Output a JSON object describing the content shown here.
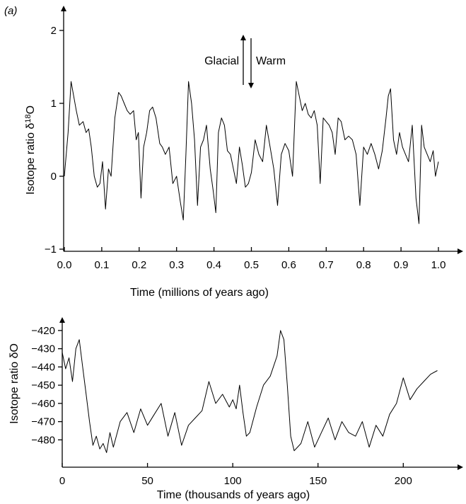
{
  "chart_data": [
    {
      "type": "line",
      "panel_label": "(a)",
      "xlabel": "Time (millions of years ago)",
      "ylabel": "Isotope ratio δ18O",
      "ylabel_base": "Isotope ratio δ",
      "ylabel_sup": "18",
      "ylabel_end": "O",
      "xlim": [
        0,
        1.0
      ],
      "ylim": [
        -1,
        2
      ],
      "xticks": [
        0.0,
        0.1,
        0.2,
        0.3,
        0.4,
        0.5,
        0.6,
        0.7,
        0.8,
        0.9,
        1.0
      ],
      "xtick_labels": [
        "0.0",
        "0.1",
        "0.2",
        "0.3",
        "0.4",
        "0.5",
        "0.6",
        "0.7",
        "0.8",
        "0.9",
        "1.0"
      ],
      "yticks": [
        -1,
        0,
        1,
        2
      ],
      "ytick_labels": [
        "−1",
        "0",
        "1",
        "2"
      ],
      "annotations": {
        "glacial": "Glacial",
        "warm": "Warm"
      },
      "series": [
        {
          "x": [
            0.0,
            0.01,
            0.018,
            0.025,
            0.032,
            0.04,
            0.05,
            0.058,
            0.065,
            0.072,
            0.08,
            0.088,
            0.095,
            0.102,
            0.11,
            0.118,
            0.125,
            0.135,
            0.145,
            0.152,
            0.16,
            0.168,
            0.176,
            0.185,
            0.192,
            0.198,
            0.205,
            0.212,
            0.22,
            0.228,
            0.236,
            0.245,
            0.255,
            0.262,
            0.27,
            0.28,
            0.29,
            0.3,
            0.31,
            0.318,
            0.325,
            0.332,
            0.34,
            0.348,
            0.356,
            0.364,
            0.372,
            0.38,
            0.39,
            0.398,
            0.405,
            0.412,
            0.42,
            0.428,
            0.436,
            0.444,
            0.452,
            0.46,
            0.468,
            0.476,
            0.484,
            0.492,
            0.5,
            0.51,
            0.52,
            0.53,
            0.54,
            0.55,
            0.56,
            0.57,
            0.58,
            0.59,
            0.6,
            0.61,
            0.62,
            0.628,
            0.636,
            0.644,
            0.652,
            0.66,
            0.668,
            0.676,
            0.684,
            0.692,
            0.7,
            0.708,
            0.716,
            0.724,
            0.732,
            0.74,
            0.75,
            0.76,
            0.77,
            0.78,
            0.79,
            0.8,
            0.81,
            0.82,
            0.83,
            0.84,
            0.85,
            0.86,
            0.866,
            0.872,
            0.88,
            0.888,
            0.896,
            0.904,
            0.912,
            0.92,
            0.93,
            0.94,
            0.948,
            0.955,
            0.962,
            0.97,
            0.978,
            0.986,
            0.992,
            1.0
          ],
          "values": [
            0.0,
            0.6,
            1.3,
            1.1,
            0.9,
            0.7,
            0.75,
            0.6,
            0.65,
            0.4,
            0.0,
            -0.15,
            -0.1,
            0.2,
            -0.45,
            0.1,
            0.0,
            0.8,
            1.15,
            1.1,
            1.0,
            0.9,
            0.85,
            0.9,
            0.5,
            0.6,
            -0.3,
            0.4,
            0.6,
            0.9,
            0.95,
            0.8,
            0.45,
            0.4,
            0.3,
            0.4,
            -0.1,
            0.0,
            -0.35,
            -0.6,
            0.3,
            1.3,
            1.0,
            0.5,
            -0.4,
            0.4,
            0.5,
            0.7,
            0.1,
            -0.2,
            -0.5,
            0.6,
            0.8,
            0.7,
            0.35,
            0.3,
            0.1,
            -0.1,
            0.4,
            0.15,
            -0.15,
            -0.1,
            0.05,
            0.5,
            0.3,
            0.2,
            0.7,
            0.4,
            0.1,
            -0.4,
            0.3,
            0.45,
            0.35,
            0.0,
            1.3,
            1.1,
            0.9,
            1.0,
            0.85,
            0.8,
            0.9,
            0.7,
            -0.1,
            0.8,
            0.75,
            0.7,
            0.6,
            0.3,
            0.8,
            0.75,
            0.5,
            0.55,
            0.5,
            0.3,
            -0.4,
            0.4,
            0.3,
            0.45,
            0.3,
            0.1,
            0.35,
            0.8,
            1.1,
            1.2,
            0.5,
            0.3,
            0.6,
            0.4,
            0.3,
            0.2,
            0.7,
            -0.3,
            -0.65,
            0.7,
            0.4,
            0.3,
            0.2,
            0.35,
            0.0,
            0.2
          ]
        }
      ]
    },
    {
      "type": "line",
      "xlabel": "Time (thousands of years ago)",
      "ylabel": "Isotope ratio δO",
      "xlim": [
        0,
        226
      ],
      "ylim": [
        -488,
        -415
      ],
      "xticks": [
        0,
        50,
        100,
        150,
        200
      ],
      "xtick_labels": [
        "0",
        "50",
        "100",
        "150",
        "200"
      ],
      "yticks": [
        -420,
        -430,
        -440,
        -450,
        -460,
        -470,
        -480
      ],
      "ytick_labels": [
        "−420",
        "−430",
        "−440",
        "−450",
        "−460",
        "−470",
        "−480"
      ],
      "series": [
        {
          "x": [
            0,
            2,
            4,
            6,
            8,
            10,
            12,
            14,
            16,
            18,
            20,
            22,
            24,
            26,
            28,
            30,
            34,
            38,
            42,
            46,
            50,
            54,
            58,
            62,
            66,
            70,
            74,
            78,
            82,
            86,
            90,
            94,
            98,
            100,
            102,
            104,
            106,
            108,
            110,
            114,
            118,
            122,
            126,
            128,
            130,
            132,
            134,
            136,
            140,
            144,
            148,
            152,
            156,
            160,
            164,
            168,
            172,
            176,
            180,
            184,
            188,
            192,
            196,
            200,
            204,
            208,
            212,
            216,
            220
          ],
          "values": [
            -432,
            -441,
            -435,
            -448,
            -430,
            -425,
            -440,
            -455,
            -470,
            -483,
            -478,
            -485,
            -482,
            -487,
            -476,
            -484,
            -470,
            -465,
            -476,
            -463,
            -472,
            -466,
            -460,
            -478,
            -465,
            -483,
            -472,
            -468,
            -464,
            -448,
            -460,
            -455,
            -462,
            -458,
            -463,
            -450,
            -465,
            -478,
            -476,
            -462,
            -450,
            -445,
            -434,
            -420,
            -425,
            -450,
            -478,
            -486,
            -482,
            -470,
            -484,
            -476,
            -468,
            -480,
            -470,
            -476,
            -478,
            -470,
            -484,
            -472,
            -478,
            -466,
            -460,
            -446,
            -458,
            -452,
            -448,
            -444,
            -442
          ]
        }
      ]
    }
  ]
}
